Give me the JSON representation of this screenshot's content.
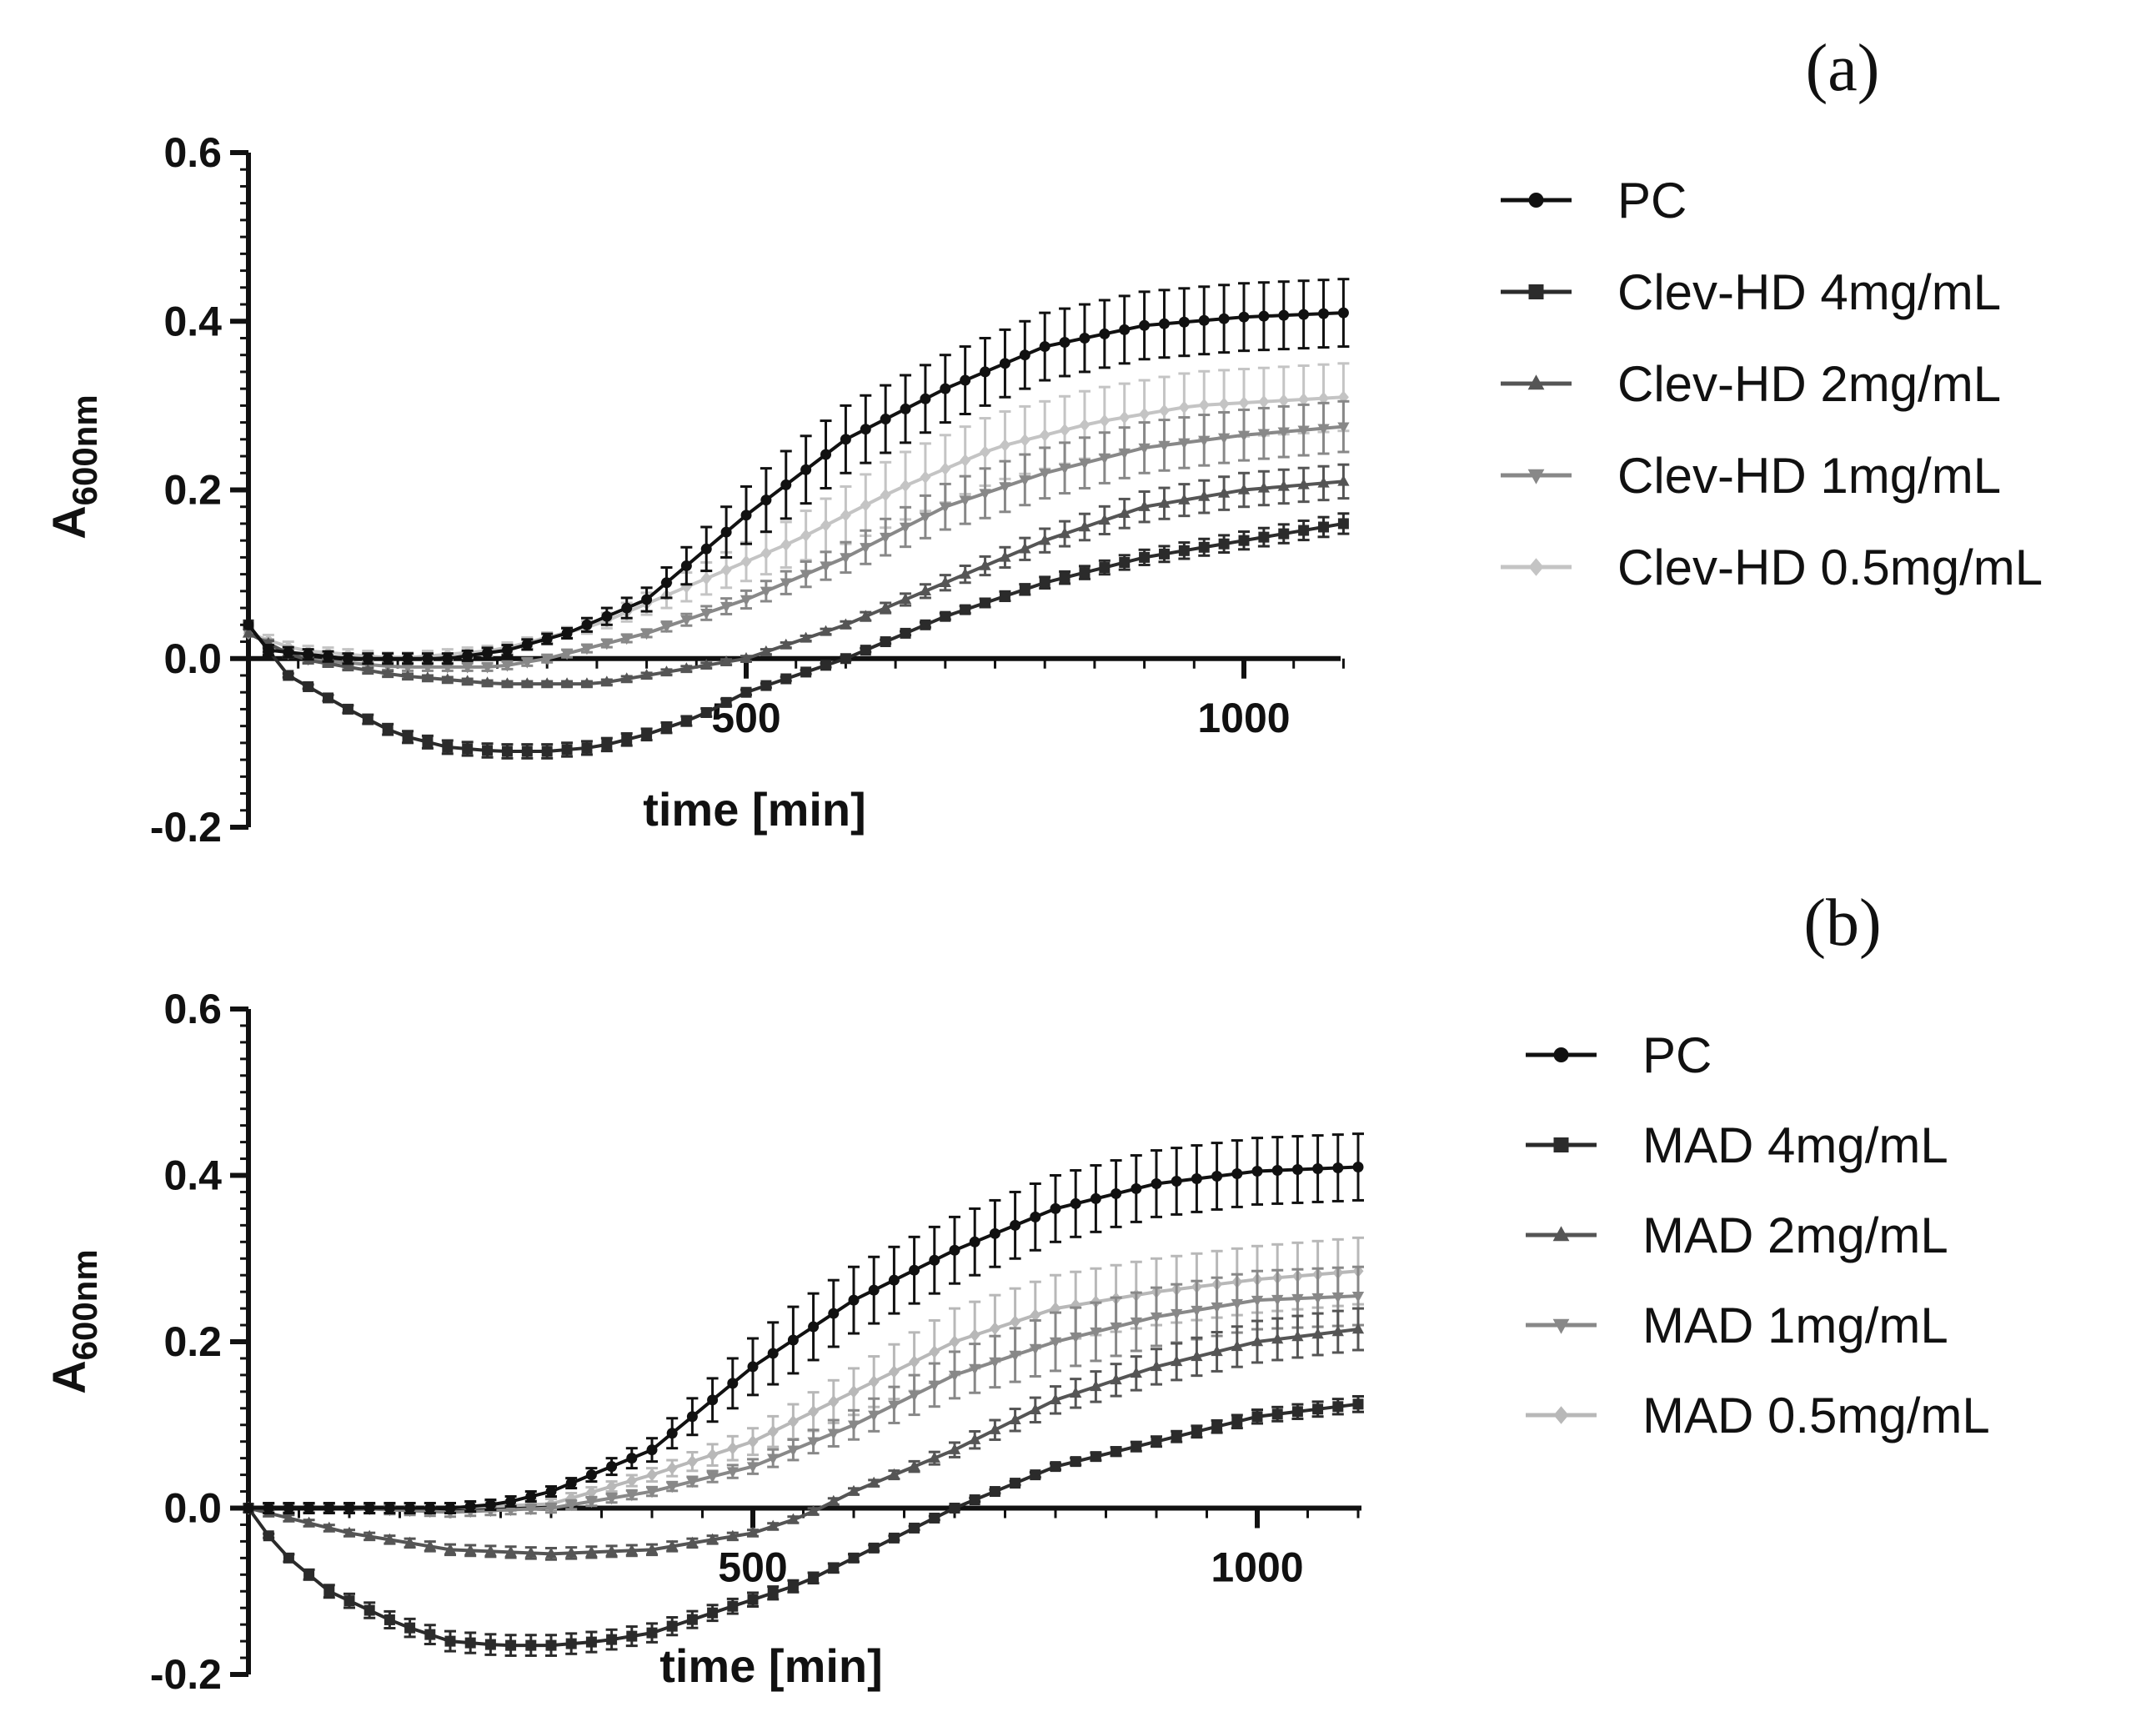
{
  "chart_data": [
    {
      "type": "line",
      "panel_label": "(a)",
      "xlabel": "time [min]",
      "ylabel_main": "A",
      "ylabel_sub": "600nm",
      "xlim": [
        0,
        1100
      ],
      "ylim": [
        -0.2,
        0.6
      ],
      "x_ticks": [
        500,
        1000
      ],
      "x_tick_labels": [
        "500",
        "1000"
      ],
      "y_ticks": [
        -0.2,
        0.0,
        0.2,
        0.4,
        0.6
      ],
      "y_tick_labels": [
        "-0.2",
        "0.0",
        "0.2",
        "0.4",
        "0.6"
      ],
      "legend_position": "right",
      "x_start": 0,
      "x_step": 20,
      "n_points": 56,
      "series": [
        {
          "name": "PC",
          "color": "#111111",
          "marker": "circle",
          "keypoints": [
            [
              0,
              0.04
            ],
            [
              20,
              0.01
            ],
            [
              100,
              0.0
            ],
            [
              200,
              0.0
            ],
            [
              260,
              0.01
            ],
            [
              320,
              0.03
            ],
            [
              400,
              0.07
            ],
            [
              500,
              0.17
            ],
            [
              600,
              0.26
            ],
            [
              700,
              0.32
            ],
            [
              800,
              0.37
            ],
            [
              900,
              0.395
            ],
            [
              1000,
              0.405
            ],
            [
              1100,
              0.41
            ]
          ],
          "err": 0.04
        },
        {
          "name": "Clev-HD 4mg/mL",
          "color": "#2b2b2b",
          "marker": "square",
          "keypoints": [
            [
              0,
              0.04
            ],
            [
              40,
              -0.02
            ],
            [
              100,
              -0.06
            ],
            [
              150,
              -0.09
            ],
            [
              200,
              -0.105
            ],
            [
              250,
              -0.11
            ],
            [
              300,
              -0.11
            ],
            [
              350,
              -0.105
            ],
            [
              400,
              -0.09
            ],
            [
              450,
              -0.07
            ],
            [
              500,
              -0.04
            ],
            [
              550,
              -0.02
            ],
            [
              600,
              0.0
            ],
            [
              700,
              0.05
            ],
            [
              800,
              0.09
            ],
            [
              900,
              0.12
            ],
            [
              1000,
              0.14
            ],
            [
              1100,
              0.16
            ]
          ],
          "err": 0.015
        },
        {
          "name": "Clev-HD 2mg/mL",
          "color": "#555555",
          "marker": "triangle",
          "keypoints": [
            [
              0,
              0.03
            ],
            [
              50,
              0.0
            ],
            [
              150,
              -0.02
            ],
            [
              250,
              -0.03
            ],
            [
              350,
              -0.03
            ],
            [
              450,
              -0.01
            ],
            [
              500,
              0.0
            ],
            [
              600,
              0.04
            ],
            [
              700,
              0.09
            ],
            [
              800,
              0.14
            ],
            [
              900,
              0.18
            ],
            [
              1000,
              0.2
            ],
            [
              1100,
              0.21
            ]
          ],
          "err": 0.02
        },
        {
          "name": "Clev-HD 1mg/mL",
          "color": "#888888",
          "marker": "triangle-down",
          "keypoints": [
            [
              0,
              0.03
            ],
            [
              50,
              0.0
            ],
            [
              150,
              -0.01
            ],
            [
              250,
              -0.01
            ],
            [
              300,
              0.0
            ],
            [
              400,
              0.03
            ],
            [
              500,
              0.07
            ],
            [
              600,
              0.12
            ],
            [
              700,
              0.18
            ],
            [
              800,
              0.22
            ],
            [
              900,
              0.25
            ],
            [
              1000,
              0.265
            ],
            [
              1100,
              0.275
            ]
          ],
          "err": 0.03
        },
        {
          "name": "Clev-HD 0.5mg/mL",
          "color": "#c4c4c4",
          "marker": "diamond",
          "keypoints": [
            [
              0,
              0.03
            ],
            [
              50,
              0.01
            ],
            [
              150,
              0.0
            ],
            [
              250,
              0.01
            ],
            [
              350,
              0.04
            ],
            [
              450,
              0.09
            ],
            [
              550,
              0.14
            ],
            [
              650,
              0.2
            ],
            [
              750,
              0.25
            ],
            [
              850,
              0.28
            ],
            [
              950,
              0.3
            ],
            [
              1100,
              0.31
            ]
          ],
          "err": 0.04
        }
      ]
    },
    {
      "type": "line",
      "panel_label": "(b)",
      "xlabel": "time [min]",
      "ylabel_main": "A",
      "ylabel_sub": "600nm",
      "xlim": [
        0,
        1100
      ],
      "ylim": [
        -0.2,
        0.6
      ],
      "x_ticks": [
        500,
        1000
      ],
      "x_tick_labels": [
        "500",
        "1000"
      ],
      "y_ticks": [
        -0.2,
        0.0,
        0.2,
        0.4,
        0.6
      ],
      "y_tick_labels": [
        "-0.2",
        "0.0",
        "0.2",
        "0.4",
        "0.6"
      ],
      "legend_position": "right",
      "x_start": 0,
      "x_step": 20,
      "n_points": 56,
      "series": [
        {
          "name": "PC",
          "color": "#111111",
          "marker": "circle",
          "keypoints": [
            [
              0,
              0.0
            ],
            [
              100,
              0.0
            ],
            [
              200,
              0.0
            ],
            [
              250,
              0.005
            ],
            [
              300,
              0.02
            ],
            [
              400,
              0.07
            ],
            [
              500,
              0.17
            ],
            [
              600,
              0.25
            ],
            [
              700,
              0.31
            ],
            [
              800,
              0.36
            ],
            [
              900,
              0.39
            ],
            [
              1000,
              0.405
            ],
            [
              1100,
              0.41
            ]
          ],
          "err": 0.04
        },
        {
          "name": "MAD 4mg/mL",
          "color": "#2b2b2b",
          "marker": "square",
          "keypoints": [
            [
              0,
              0.0
            ],
            [
              30,
              -0.05
            ],
            [
              80,
              -0.1
            ],
            [
              150,
              -0.14
            ],
            [
              200,
              -0.16
            ],
            [
              250,
              -0.165
            ],
            [
              300,
              -0.165
            ],
            [
              350,
              -0.16
            ],
            [
              400,
              -0.15
            ],
            [
              450,
              -0.13
            ],
            [
              500,
              -0.11
            ],
            [
              550,
              -0.09
            ],
            [
              600,
              -0.06
            ],
            [
              650,
              -0.03
            ],
            [
              700,
              0.0
            ],
            [
              800,
              0.05
            ],
            [
              900,
              0.08
            ],
            [
              1000,
              0.11
            ],
            [
              1100,
              0.125
            ]
          ],
          "err": 0.015
        },
        {
          "name": "MAD 2mg/mL",
          "color": "#555555",
          "marker": "triangle",
          "keypoints": [
            [
              0,
              0.0
            ],
            [
              100,
              -0.03
            ],
            [
              200,
              -0.05
            ],
            [
              300,
              -0.055
            ],
            [
              400,
              -0.05
            ],
            [
              500,
              -0.03
            ],
            [
              550,
              -0.01
            ],
            [
              600,
              0.02
            ],
            [
              700,
              0.07
            ],
            [
              800,
              0.13
            ],
            [
              900,
              0.17
            ],
            [
              1000,
              0.2
            ],
            [
              1100,
              0.215
            ]
          ],
          "err": 0.025
        },
        {
          "name": "MAD 1mg/mL",
          "color": "#888888",
          "marker": "triangle-down",
          "keypoints": [
            [
              0,
              0.0
            ],
            [
              100,
              0.0
            ],
            [
              200,
              -0.005
            ],
            [
              300,
              0.0
            ],
            [
              400,
              0.02
            ],
            [
              500,
              0.05
            ],
            [
              600,
              0.1
            ],
            [
              700,
              0.16
            ],
            [
              800,
              0.2
            ],
            [
              900,
              0.23
            ],
            [
              1000,
              0.25
            ],
            [
              1100,
              0.255
            ]
          ],
          "err": 0.035
        },
        {
          "name": "MAD 0.5mg/mL",
          "color": "#b8b8b8",
          "marker": "diamond",
          "keypoints": [
            [
              0,
              0.0
            ],
            [
              100,
              0.0
            ],
            [
              200,
              0.0
            ],
            [
              300,
              0.005
            ],
            [
              400,
              0.04
            ],
            [
              500,
              0.08
            ],
            [
              600,
              0.14
            ],
            [
              700,
              0.2
            ],
            [
              800,
              0.24
            ],
            [
              900,
              0.26
            ],
            [
              1000,
              0.275
            ],
            [
              1100,
              0.285
            ]
          ],
          "err": 0.04
        }
      ]
    }
  ]
}
